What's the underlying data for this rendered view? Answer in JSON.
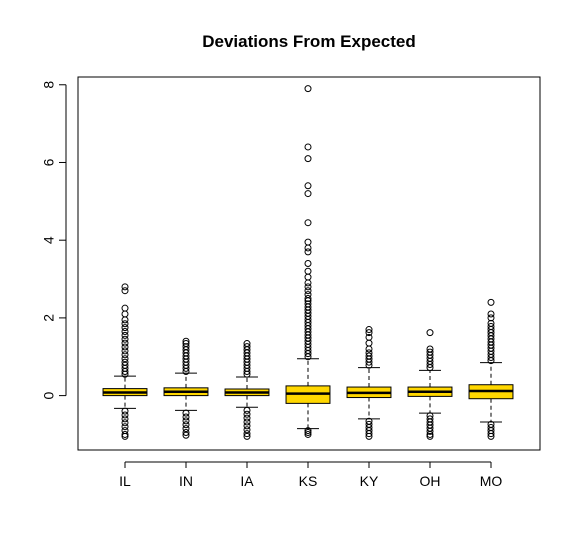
{
  "chart_data": {
    "type": "boxplot",
    "title": "Deviations From Expected",
    "xlabel": "",
    "ylabel": "",
    "ylim": [
      -1.4,
      8.2
    ],
    "yticks": [
      0,
      2,
      4,
      6,
      8
    ],
    "categories": [
      "IL",
      "IN",
      "IA",
      "KS",
      "KY",
      "OH",
      "MO"
    ],
    "box_color": "#FFD700",
    "grid": false,
    "boxes": [
      {
        "label": "IL",
        "q1": 0.0,
        "median": 0.08,
        "q3": 0.18,
        "whisker_low": -0.33,
        "whisker_high": 0.5,
        "outliers_high": [
          0.55,
          0.62,
          0.7,
          0.78,
          0.86,
          0.95,
          1.05,
          1.15,
          1.25,
          1.35,
          1.45,
          1.55,
          1.65,
          1.75,
          1.85,
          1.95,
          2.1,
          2.25,
          2.7,
          2.8
        ],
        "outliers_low": [
          -0.4,
          -0.5,
          -0.6,
          -0.7,
          -0.8,
          -0.9,
          -1.0,
          -1.05
        ]
      },
      {
        "label": "IN",
        "q1": 0.0,
        "median": 0.1,
        "q3": 0.2,
        "whisker_low": -0.38,
        "whisker_high": 0.58,
        "outliers_high": [
          0.62,
          0.7,
          0.78,
          0.86,
          0.94,
          1.02,
          1.1,
          1.18,
          1.26,
          1.34,
          1.4
        ],
        "outliers_low": [
          -0.45,
          -0.55,
          -0.65,
          -0.75,
          -0.85,
          -0.95,
          -1.02
        ]
      },
      {
        "label": "IA",
        "q1": 0.0,
        "median": 0.08,
        "q3": 0.17,
        "whisker_low": -0.3,
        "whisker_high": 0.48,
        "outliers_high": [
          0.55,
          0.62,
          0.7,
          0.78,
          0.86,
          0.94,
          1.02,
          1.1,
          1.18,
          1.26,
          1.34
        ],
        "outliers_low": [
          -0.38,
          -0.48,
          -0.58,
          -0.68,
          -0.78,
          -0.88,
          -0.98,
          -1.05
        ]
      },
      {
        "label": "KS",
        "q1": -0.2,
        "median": 0.05,
        "q3": 0.25,
        "whisker_low": -0.85,
        "whisker_high": 0.95,
        "outliers_high": [
          1.0,
          1.08,
          1.16,
          1.24,
          1.32,
          1.4,
          1.48,
          1.56,
          1.64,
          1.72,
          1.8,
          1.88,
          1.96,
          2.04,
          2.12,
          2.2,
          2.28,
          2.36,
          2.44,
          2.5,
          2.6,
          2.7,
          2.8,
          2.9,
          3.05,
          3.2,
          3.4,
          3.7,
          3.8,
          3.95,
          4.45,
          5.2,
          5.4,
          6.1,
          6.4,
          7.9
        ],
        "outliers_low": [
          -0.9,
          -0.95,
          -1.0
        ]
      },
      {
        "label": "KY",
        "q1": -0.05,
        "median": 0.07,
        "q3": 0.22,
        "whisker_low": -0.6,
        "whisker_high": 0.72,
        "outliers_high": [
          0.78,
          0.86,
          0.94,
          1.02,
          1.1,
          1.2,
          1.35,
          1.5,
          1.62,
          1.7
        ],
        "outliers_low": [
          -0.66,
          -0.74,
          -0.82,
          -0.9,
          -0.98,
          -1.05
        ]
      },
      {
        "label": "OH",
        "q1": -0.02,
        "median": 0.1,
        "q3": 0.22,
        "whisker_low": -0.45,
        "whisker_high": 0.65,
        "outliers_high": [
          0.72,
          0.8,
          0.88,
          0.96,
          1.04,
          1.12,
          1.2,
          1.62
        ],
        "outliers_low": [
          -0.52,
          -0.6,
          -0.68,
          -0.76,
          -0.84,
          -0.92,
          -1.0,
          -1.05
        ]
      },
      {
        "label": "MO",
        "q1": -0.08,
        "median": 0.12,
        "q3": 0.28,
        "whisker_low": -0.68,
        "whisker_high": 0.85,
        "outliers_high": [
          0.9,
          0.98,
          1.06,
          1.14,
          1.22,
          1.3,
          1.38,
          1.46,
          1.54,
          1.62,
          1.7,
          1.78,
          1.86,
          2.0,
          2.1,
          2.4
        ],
        "outliers_low": [
          -0.74,
          -0.82,
          -0.9,
          -0.98,
          -1.05
        ]
      }
    ]
  }
}
